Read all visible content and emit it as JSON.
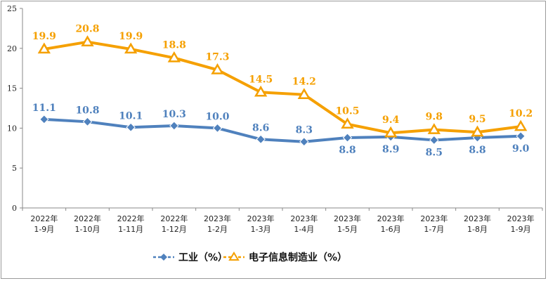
{
  "chart_data": {
    "type": "line",
    "categories": [
      [
        "2022年",
        "1-9月"
      ],
      [
        "2022年",
        "1-10月"
      ],
      [
        "2022年",
        "1-11月"
      ],
      [
        "2022年",
        "1-12月"
      ],
      [
        "2023年",
        "1-2月"
      ],
      [
        "2023年",
        "1-3月"
      ],
      [
        "2023年",
        "1-4月"
      ],
      [
        "2023年",
        "1-5月"
      ],
      [
        "2023年",
        "1-6月"
      ],
      [
        "2023年",
        "1-7月"
      ],
      [
        "2023年",
        "1-8月"
      ],
      [
        "2023年",
        "1-9月"
      ]
    ],
    "series": [
      {
        "name": "工业（%）",
        "color": "#4f81bd",
        "marker": "diamond",
        "values": [
          11.1,
          10.8,
          10.1,
          10.3,
          10.0,
          8.6,
          8.3,
          8.8,
          8.9,
          8.5,
          8.8,
          9.0
        ],
        "labels": [
          "11.1",
          "10.8",
          "10.1",
          "10.3",
          "10.0",
          "8.6",
          "8.3",
          "8.8",
          "8.9",
          "8.5",
          "8.8",
          "9.0"
        ]
      },
      {
        "name": "电子信息制造业（%）",
        "color": "#f5a000",
        "marker": "triangle",
        "values": [
          19.9,
          20.8,
          19.9,
          18.8,
          17.3,
          14.5,
          14.2,
          10.5,
          9.4,
          9.8,
          9.5,
          10.2
        ],
        "labels": [
          "19.9",
          "20.8",
          "19.9",
          "18.8",
          "17.3",
          "14.5",
          "14.2",
          "10.5",
          "9.4",
          "9.8",
          "9.5",
          "10.2"
        ]
      }
    ],
    "ylim": [
      0,
      25
    ],
    "yticks": [
      "0",
      "5",
      "10",
      "15",
      "20",
      "25"
    ],
    "grid": false,
    "legend": "bottom-center"
  }
}
